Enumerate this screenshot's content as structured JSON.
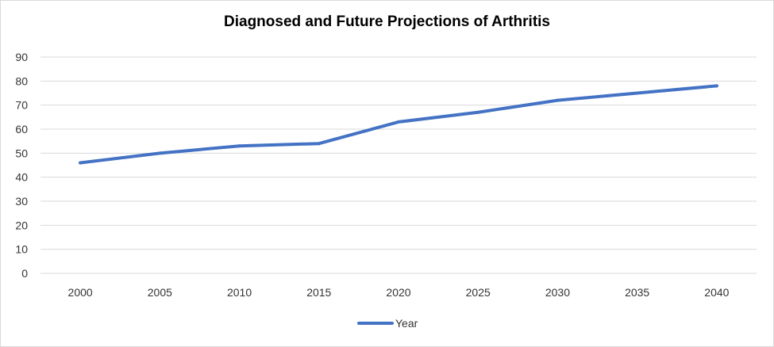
{
  "chart_data": {
    "type": "line",
    "title": "Diagnosed and Future Projections of Arthritis",
    "xlabel": "",
    "ylabel": "",
    "categories": [
      "2000",
      "2005",
      "2010",
      "2015",
      "2020",
      "2025",
      "2030",
      "2035",
      "2040"
    ],
    "series": [
      {
        "name": "Year",
        "values": [
          46,
          50,
          53,
          54,
          63,
          67,
          72,
          75,
          78
        ],
        "color": "#4472c4"
      }
    ],
    "y_ticks": [
      "0",
      "10",
      "20",
      "30",
      "40",
      "50",
      "60",
      "70",
      "80",
      "90"
    ],
    "ylim": [
      0,
      90
    ],
    "grid": true,
    "legend_position": "bottom"
  }
}
